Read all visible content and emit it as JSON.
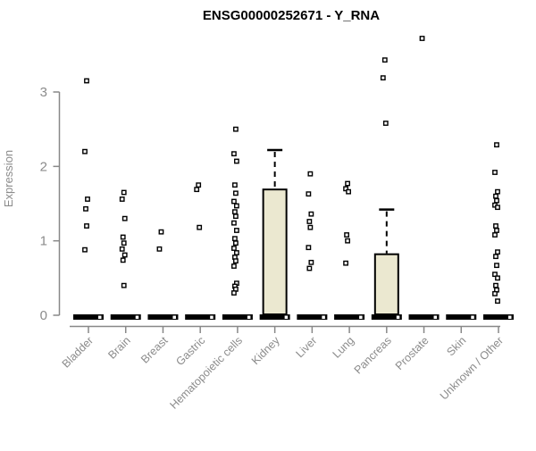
{
  "chart_data": {
    "type": "boxplot",
    "title": "ENSG00000252671 - Y_RNA",
    "ylabel": "Expression",
    "xlabel": "",
    "ylim": [
      0,
      3
    ],
    "yticks": [
      0,
      1,
      2,
      3
    ],
    "grid": false,
    "legend": "none",
    "point_marker": "open-square",
    "colors": {
      "background": "#FFFFFF",
      "box_fill": "#EBE8D0",
      "box_border": "#000000",
      "median_bar": "#000000",
      "whisker": "#000000",
      "point_fill": "#FFFFFF",
      "point_border": "#000000",
      "axis_line": "#888888",
      "axis_text": "#8B8B8B",
      "title_color": "#000000"
    },
    "categories": [
      {
        "label": "Bladder",
        "median": 0,
        "points": [
          3.15,
          2.2,
          1.56,
          1.43,
          1.2,
          0.88
        ]
      },
      {
        "label": "Brain",
        "median": 0,
        "points": [
          1.65,
          1.56,
          1.3,
          1.05,
          0.97,
          0.89,
          0.81,
          0.74,
          0.4
        ]
      },
      {
        "label": "Breast",
        "median": 0,
        "points": [
          1.12,
          0.89
        ]
      },
      {
        "label": "Gastric",
        "median": 0,
        "points": [
          1.75,
          1.69,
          1.18
        ]
      },
      {
        "label": "Hematopoietic cells",
        "median": 0,
        "points": [
          2.5,
          2.17,
          2.07,
          1.75,
          1.64,
          1.53,
          1.47,
          1.39,
          1.33,
          1.24,
          1.14,
          1.03,
          0.97,
          0.9,
          0.84,
          0.78,
          0.73,
          0.66,
          0.43,
          0.39,
          0.35,
          0.3
        ]
      },
      {
        "label": "Kidney",
        "median": 0,
        "box": {
          "q1": 0,
          "median": 0,
          "q3": 1.69,
          "whisker_high": 2.22
        },
        "points": []
      },
      {
        "label": "Liver",
        "median": 0,
        "points": [
          1.9,
          1.63,
          1.36,
          1.26,
          1.18,
          0.91,
          0.71,
          0.63
        ]
      },
      {
        "label": "Lung",
        "median": 0,
        "points": [
          1.77,
          1.7,
          1.66,
          1.08,
          1.0,
          0.7
        ]
      },
      {
        "label": "Pancreas",
        "median": 0,
        "box": {
          "q1": 0,
          "median": 0,
          "q3": 0.82,
          "whisker_high": 1.42
        },
        "points": [
          3.43,
          3.19,
          2.58
        ]
      },
      {
        "label": "Prostate",
        "median": 0,
        "points": [
          3.72
        ]
      },
      {
        "label": "Skin",
        "median": 0,
        "points": []
      },
      {
        "label": "Unknown / Other",
        "median": 0,
        "points": [
          2.29,
          1.92,
          1.66,
          1.6,
          1.54,
          1.48,
          1.45,
          1.2,
          1.14,
          1.08,
          0.85,
          0.79,
          0.67,
          0.55,
          0.5,
          0.4,
          0.34,
          0.29,
          0.19
        ]
      }
    ]
  }
}
